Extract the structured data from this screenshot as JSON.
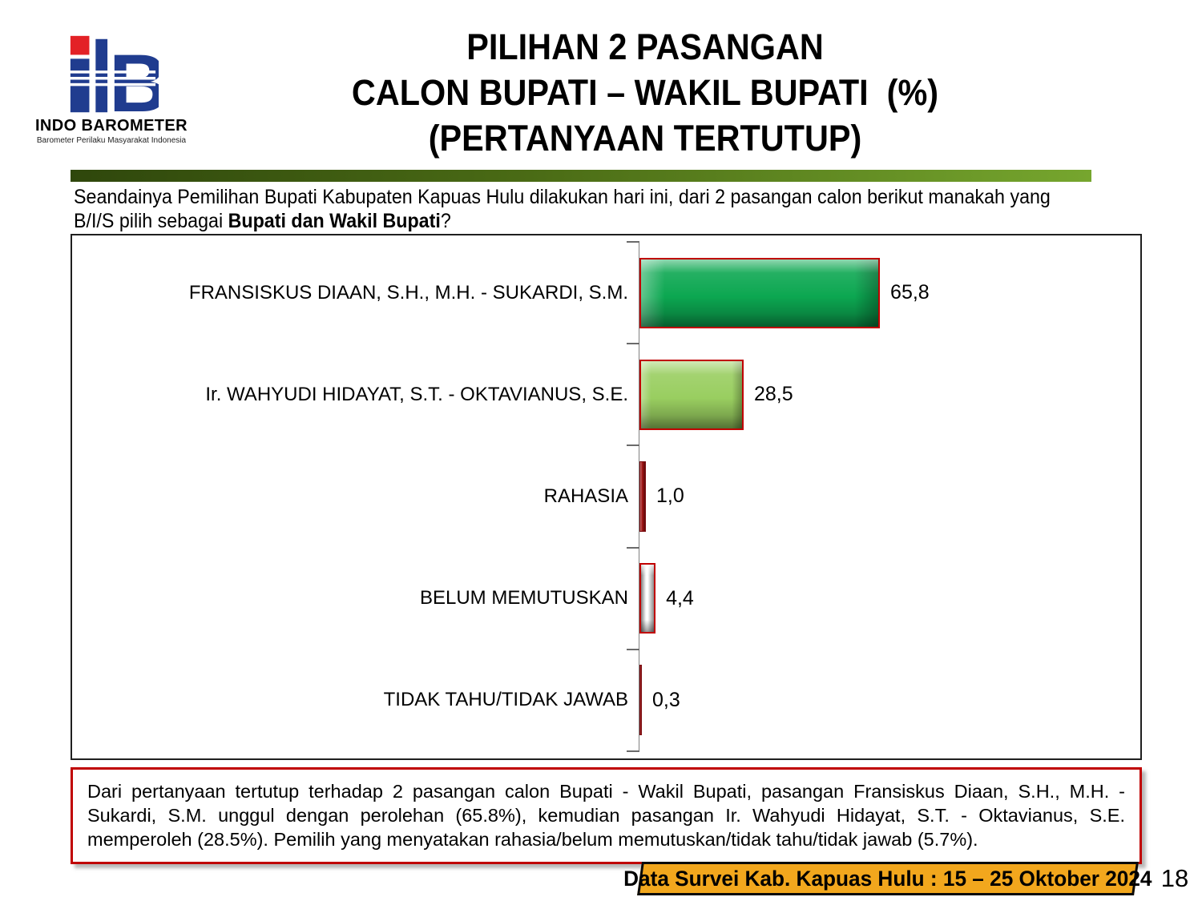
{
  "logo": {
    "name": "INDO BAROMETER",
    "tagline": "Barometer Perilaku Masyarakat Indonesia",
    "blue": "#203C8F",
    "red": "#E32126"
  },
  "title": {
    "line1": "PILIHAN 2 PASANGAN",
    "line2": "CALON BUPATI – WAKIL BUPATI  (%)",
    "line3": "(PERTANYAAN TERTUTUP)"
  },
  "question": {
    "line1": "Seandainya Pemilihan Bupati Kabupaten Kapuas Hulu dilakukan hari ini, dari 2 pasangan calon berikut manakah yang",
    "line2_prefix": "B/I/S pilih sebagai ",
    "line2_bold": "Bupati dan Wakil Bupati",
    "line2_suffix": "?"
  },
  "chart_data": {
    "type": "bar",
    "orientation": "horizontal",
    "title": "",
    "unit": "%",
    "categories": [
      "FRANSISKUS DIAAN, S.H., M.H. - SUKARDI, S.M.",
      "Ir. WAHYUDI HIDAYAT, S.T. - OKTAVIANUS, S.E.",
      "RAHASIA",
      "BELUM MEMUTUSKAN",
      "TIDAK TAHU/TIDAK JAWAB"
    ],
    "values": [
      65.8,
      28.5,
      1.0,
      4.4,
      0.3
    ],
    "value_labels": [
      "65,8",
      "28,5",
      "1,0",
      "4,4",
      "0,3"
    ],
    "xlim": [
      0,
      137
    ],
    "gridlines": false,
    "value_label_position": "outside-end",
    "bars": [
      {
        "style": "green",
        "fill": "#0CA751",
        "border": "#C00000"
      },
      {
        "style": "lightgreen",
        "fill": "#99CE60",
        "border": "#C00000"
      },
      {
        "style": "darkred",
        "fill": "#9E1212",
        "border": "#7A0C10"
      },
      {
        "style": "silver",
        "fill": "#C9C9C9",
        "border": "#C00000"
      },
      {
        "style": "darkred",
        "fill": "#9E1212",
        "border": "#7A0C10"
      }
    ]
  },
  "summary": {
    "text": "Dari pertanyaan tertutup terhadap 2 pasangan calon Bupati - Wakil Bupati, pasangan Fransiskus Diaan, S.H., M.H. - Sukardi, S.M. unggul dengan perolehan (65.8%), kemudian pasangan Ir. Wahyudi Hidayat, S.T. - Oktavianus, S.E. memperoleh (28.5%). Pemilih yang menyatakan rahasia/belum memutuskan/tidak tahu/tidak jawab (5.7%)."
  },
  "footer": {
    "badge_label": "Data Survei Kab. Kapuas Hulu : 15 – 25 Oktober 2024",
    "page_number": "18"
  },
  "colors": {
    "divider_start": "#2F470C",
    "divider_end": "#76A62E",
    "summary_border": "#C00000",
    "badge_bg": "#F2A71D",
    "axis": "#808080",
    "chart_border": "#1F1F1F"
  }
}
